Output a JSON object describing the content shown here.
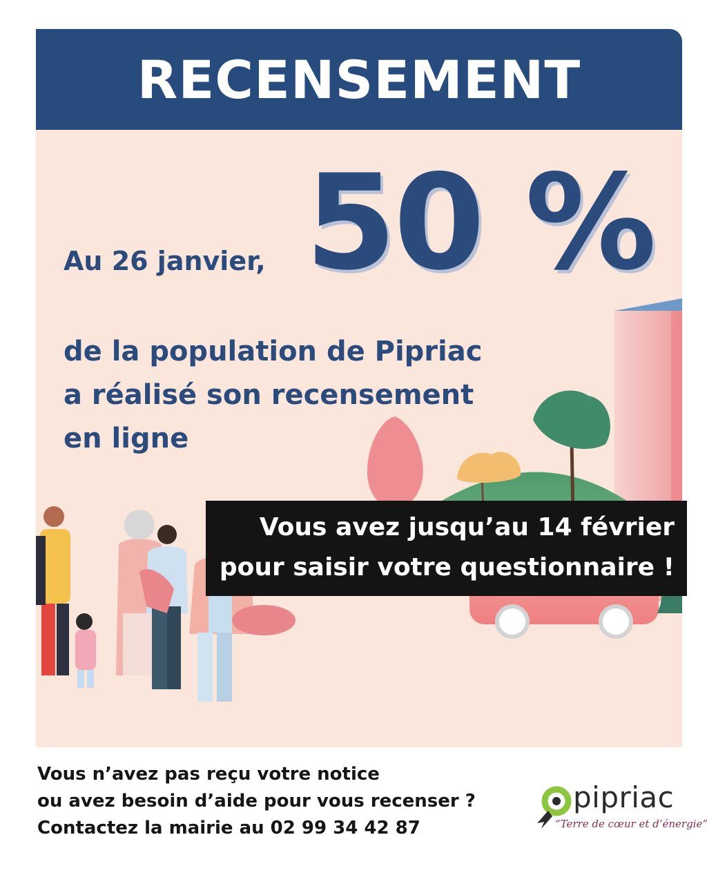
{
  "header": {
    "title": "RECENSEMENT"
  },
  "main": {
    "intro": "Au 26 janvier,",
    "percentage": "50 %",
    "description": [
      "de la population de Pipriac",
      "a réalisé son recensement",
      "en ligne"
    ]
  },
  "deadline": {
    "lines": [
      "Vous avez jusqu’au 14 février",
      "pour saisir votre questionnaire !"
    ]
  },
  "footer": {
    "lines": [
      "Vous n’avez pas reçu votre notice",
      "ou avez besoin d’aide pour vous recenser  ?",
      "Contactez la mairie au 02 99 34 42 87"
    ]
  },
  "logo": {
    "name": "pipriac",
    "tagline": "“Terre de cœur et d’énergie”"
  },
  "colors": {
    "brand_blue": "#284b7e",
    "panel_background": "#fbe6dc",
    "deadline_background": "#141414",
    "logo_green": "#8cc63f",
    "logo_text": "#8a2e52"
  }
}
